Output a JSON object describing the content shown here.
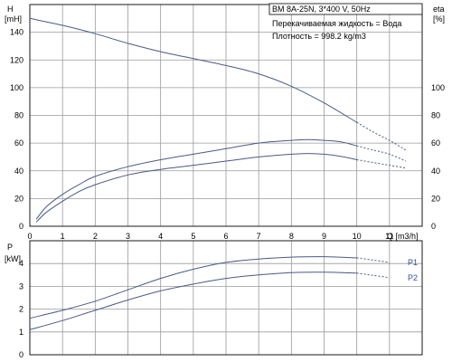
{
  "colors": {
    "curve": "#4a5a86",
    "grid": "#9a9a9a",
    "label": "#2f4fa0"
  },
  "chart_data": [
    {
      "type": "line",
      "title": "BM 8A-25N, 3*400 V, 50Hz",
      "notes": [
        "Перекачиваемая жидкость = Вода",
        "Плотность = 998.2 kg/m3"
      ],
      "xlabel": "Q [m3/h]",
      "ylabel": "H [mH]",
      "y2label": "eta [%]",
      "xlim": [
        0,
        12
      ],
      "ylim": [
        0,
        160
      ],
      "y2lim": [
        0,
        160
      ],
      "xticks": [
        0,
        1,
        2,
        3,
        4,
        5,
        6,
        7,
        8,
        9,
        10,
        11
      ],
      "yticks": [
        0,
        20,
        40,
        60,
        80,
        100,
        120,
        140
      ],
      "y2ticks": [
        0,
        20,
        40,
        60,
        80,
        100
      ],
      "grid": true,
      "series": [
        {
          "axis": "left",
          "x": [
            0,
            1,
            2,
            3,
            4,
            5,
            6,
            7,
            8,
            9,
            10
          ],
          "y": [
            150,
            145,
            139,
            132,
            126,
            121,
            116,
            110,
            101,
            89,
            75
          ],
          "dashed_x": [
            10,
            10.5,
            11,
            11.5
          ],
          "dashed_y": [
            75,
            68,
            62,
            55
          ]
        },
        {
          "axis": "right",
          "x": [
            0.2,
            0.5,
            1,
            1.5,
            2,
            3,
            4,
            5,
            6,
            7,
            8,
            8.5,
            9,
            9.5,
            10
          ],
          "y": [
            5,
            14,
            23,
            30,
            36,
            43,
            48,
            52,
            56,
            60,
            62,
            62.5,
            62,
            61,
            58
          ],
          "dashed_x": [
            10,
            10.5,
            11,
            11.5
          ],
          "dashed_y": [
            58,
            55,
            52,
            47
          ]
        },
        {
          "axis": "right",
          "x": [
            0.2,
            0.5,
            1,
            1.5,
            2,
            3,
            4,
            5,
            6,
            7,
            8,
            8.5,
            9,
            9.5,
            10
          ],
          "y": [
            3,
            10,
            18,
            25,
            30,
            37,
            41,
            44,
            47,
            50,
            52,
            52.5,
            52,
            50.5,
            48
          ],
          "dashed_x": [
            10,
            10.5,
            11,
            11.5
          ],
          "dashed_y": [
            48,
            46,
            44,
            42
          ]
        }
      ]
    },
    {
      "type": "line",
      "ylabel": "P [kW]",
      "xlim": [
        0,
        12
      ],
      "ylim": [
        0,
        5
      ],
      "yticks": [
        0,
        1,
        2,
        3,
        4
      ],
      "grid": true,
      "series": [
        {
          "name": "P1",
          "x": [
            0,
            1,
            2,
            3,
            4,
            5,
            6,
            7,
            8,
            9,
            10
          ],
          "y": [
            1.6,
            1.95,
            2.35,
            2.85,
            3.35,
            3.75,
            4.05,
            4.2,
            4.28,
            4.3,
            4.25
          ],
          "dashed_x": [
            10,
            10.5,
            11
          ],
          "dashed_y": [
            4.25,
            4.15,
            4.05
          ]
        },
        {
          "name": "P2",
          "x": [
            0,
            1,
            2,
            3,
            4,
            5,
            6,
            7,
            8,
            9,
            10
          ],
          "y": [
            1.1,
            1.5,
            1.95,
            2.4,
            2.8,
            3.1,
            3.35,
            3.5,
            3.6,
            3.62,
            3.58
          ],
          "dashed_x": [
            10,
            10.5,
            11
          ],
          "dashed_y": [
            3.58,
            3.48,
            3.38
          ]
        }
      ]
    }
  ]
}
